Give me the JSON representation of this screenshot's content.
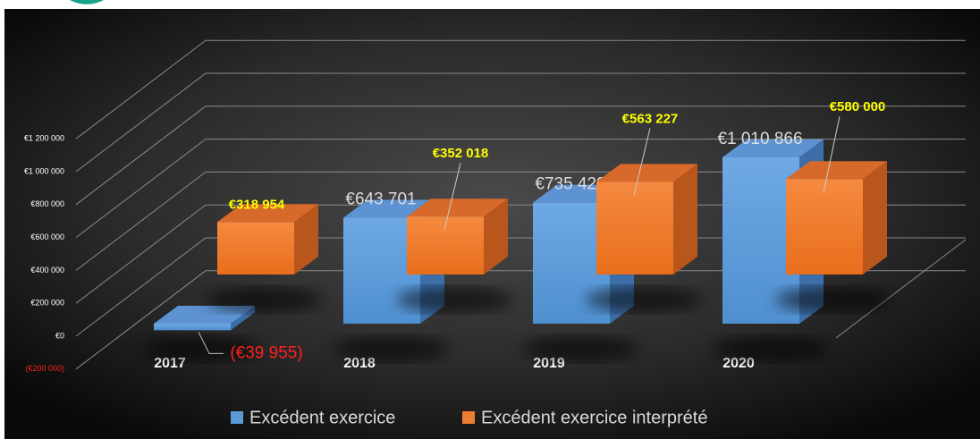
{
  "chart_data": {
    "type": "bar3d",
    "categories": [
      "2017",
      "2018",
      "2019",
      "2020"
    ],
    "series": [
      {
        "name": "Excédent exercice",
        "color": "#5b9bd5",
        "values": [
          -39955,
          643701,
          735429,
          1010866
        ],
        "value_labels": [
          "(€39 955)",
          "€643 701",
          "€735 429",
          "€1 010 866"
        ]
      },
      {
        "name": "Excédent exercice interprété",
        "color": "#ed7d31",
        "values": [
          318954,
          352018,
          563227,
          580000
        ],
        "value_labels": [
          "€318 954",
          "€352 018",
          "€563 227",
          "€580 000"
        ]
      }
    ],
    "ylim": [
      -200000,
      1200000
    ],
    "yticks": [
      {
        "value": -200000,
        "label": "(€200 000)"
      },
      {
        "value": 0,
        "label": "€0"
      },
      {
        "value": 200000,
        "label": "€200 000"
      },
      {
        "value": 400000,
        "label": "€400 000"
      },
      {
        "value": 600000,
        "label": "€600 000"
      },
      {
        "value": 800000,
        "label": "€800 000"
      },
      {
        "value": 1000000,
        "label": "€1 000 000"
      },
      {
        "value": 1200000,
        "label": "€1 200 000"
      }
    ],
    "grid": true,
    "legend": "bottom"
  }
}
